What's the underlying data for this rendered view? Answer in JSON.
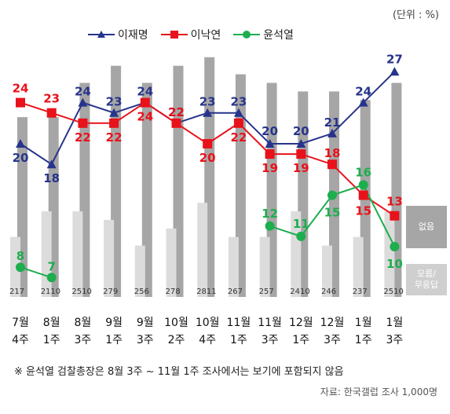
{
  "unit_label": "(단위 : %)",
  "side_labels": {
    "none": "없음",
    "unknown": "모름/\n무응답"
  },
  "note": "※ 윤석열 검찰총장은 8월 3주 ~ 11월 1주 조사에서는 보기에 포함되지 않음",
  "source": "자료: 한국갤럽 조사 1,000명",
  "colors": {
    "lee_jm": "#27348B",
    "lee_ny": "#E8121A",
    "yoon": "#1DAE4E",
    "bar_dark": "#A6A6A6",
    "bar_light": "#DCDCDC"
  },
  "chart_data": {
    "type": "line",
    "categories": [
      "7월\n4주",
      "8월\n1주",
      "8월\n3주",
      "9월\n1주",
      "9월\n3주",
      "10월\n2주",
      "10월\n4주",
      "11월\n1주",
      "11월\n3주",
      "12월\n1주",
      "12월\n3주",
      "1월\n1주",
      "1월\n3주"
    ],
    "series": [
      {
        "name": "이재명",
        "values": [
          20,
          18,
          24,
          23,
          24,
          22,
          23,
          23,
          20,
          20,
          21,
          24,
          27
        ]
      },
      {
        "name": "이낙연",
        "values": [
          24,
          23,
          22,
          22,
          24,
          22,
          20,
          22,
          19,
          19,
          18,
          15,
          13
        ]
      },
      {
        "name": "윤석열",
        "values": [
          8,
          7,
          null,
          null,
          null,
          null,
          null,
          null,
          12,
          11,
          15,
          16,
          10
        ]
      }
    ],
    "bars": {
      "none": [
        21,
        21,
        25,
        27,
        25,
        27,
        28,
        26,
        25,
        24,
        24,
        23,
        25
      ],
      "unknown": [
        7,
        10,
        10,
        9,
        6,
        8,
        11,
        7,
        7,
        10,
        6,
        7,
        10
      ]
    },
    "legend_position": "top",
    "grid": false
  }
}
